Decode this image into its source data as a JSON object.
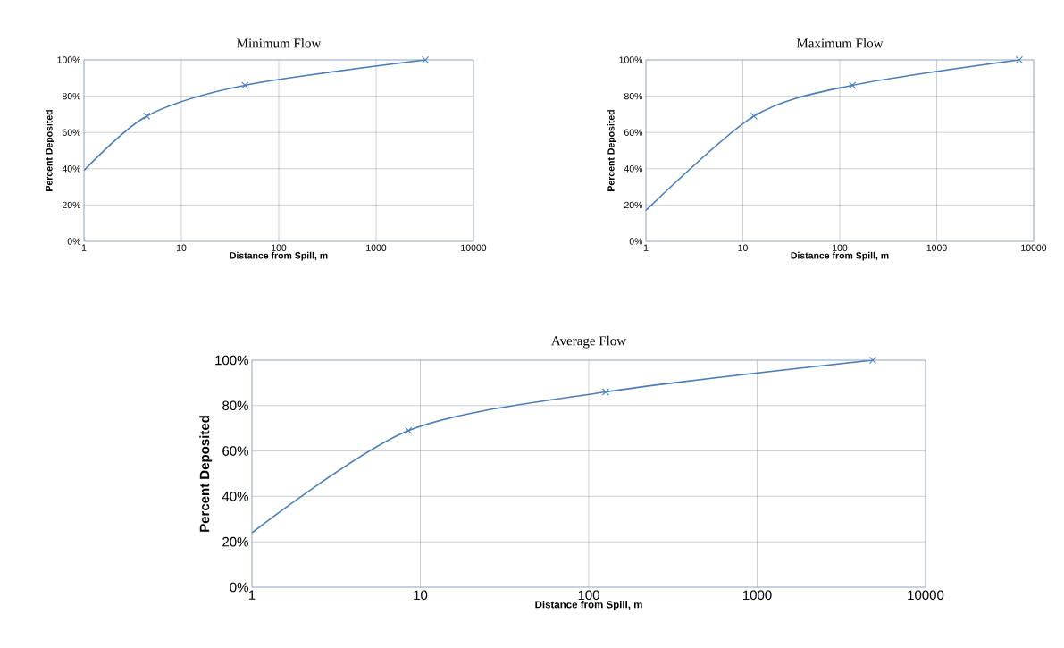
{
  "chart_data": [
    {
      "type": "line",
      "title": "Minimum Flow",
      "xlabel": "Distance from Spill, m",
      "ylabel": "Percent Deposited",
      "log": "x",
      "grid": true,
      "xlim": [
        1,
        10000
      ],
      "ylim": [
        0,
        100
      ],
      "xticks": [
        1,
        10,
        100,
        1000,
        10000
      ],
      "yticks": [
        {
          "value": 0,
          "label": "0%"
        },
        {
          "value": 20,
          "label": "20%"
        },
        {
          "value": 40,
          "label": "40%"
        },
        {
          "value": 60,
          "label": "60%"
        },
        {
          "value": 80,
          "label": "80%"
        },
        {
          "value": 100,
          "label": "100%"
        }
      ],
      "series": [
        {
          "color": "#4a7ebb",
          "marker": "none",
          "line_style": "solid",
          "x": [
            1,
            4.4,
            45,
            3200
          ],
          "values": [
            39,
            69,
            86,
            100
          ]
        },
        {
          "type": "scatter",
          "color": "#4a7ebb",
          "marker": "cross",
          "x": [
            4.4,
            45,
            3200
          ],
          "values": [
            69,
            86,
            100
          ]
        }
      ]
    },
    {
      "type": "line",
      "title": "Maximum Flow",
      "xlabel": "Distance from Spill, m",
      "ylabel": "Percent Deposited",
      "log": "x",
      "grid": true,
      "xlim": [
        1,
        10000
      ],
      "ylim": [
        0,
        100
      ],
      "xticks": [
        1,
        10,
        100,
        1000,
        10000
      ],
      "yticks": [
        {
          "value": 0,
          "label": "0%"
        },
        {
          "value": 20,
          "label": "20%"
        },
        {
          "value": 40,
          "label": "40%"
        },
        {
          "value": 60,
          "label": "60%"
        },
        {
          "value": 80,
          "label": "80%"
        },
        {
          "value": 100,
          "label": "100%"
        }
      ],
      "series": [
        {
          "color": "#4a7ebb",
          "marker": "none",
          "line_style": "solid",
          "x": [
            1,
            13,
            135,
            7100
          ],
          "values": [
            17,
            69,
            86,
            100
          ]
        },
        {
          "type": "scatter",
          "color": "#4a7ebb",
          "marker": "cross",
          "x": [
            13,
            135,
            7100
          ],
          "values": [
            69,
            86,
            100
          ]
        }
      ]
    },
    {
      "type": "line",
      "title": "Average Flow",
      "xlabel": "Distance from Spill, m",
      "ylabel": "Percent Deposited",
      "log": "x",
      "grid": true,
      "xlim": [
        1,
        10000
      ],
      "ylim": [
        0,
        100
      ],
      "xticks": [
        1,
        10,
        100,
        1000,
        10000
      ],
      "yticks": [
        {
          "value": 0,
          "label": "0%"
        },
        {
          "value": 20,
          "label": "20%"
        },
        {
          "value": 40,
          "label": "40%"
        },
        {
          "value": 60,
          "label": "60%"
        },
        {
          "value": 80,
          "label": "80%"
        },
        {
          "value": 100,
          "label": "100%"
        }
      ],
      "series": [
        {
          "color": "#4a7ebb",
          "marker": "none",
          "line_style": "solid",
          "x": [
            1,
            8.5,
            126,
            4860
          ],
          "values": [
            24,
            69,
            86,
            100
          ]
        },
        {
          "type": "scatter",
          "color": "#4a7ebb",
          "marker": "cross",
          "x": [
            8.5,
            126,
            4860
          ],
          "values": [
            69,
            86,
            100
          ]
        }
      ]
    }
  ]
}
